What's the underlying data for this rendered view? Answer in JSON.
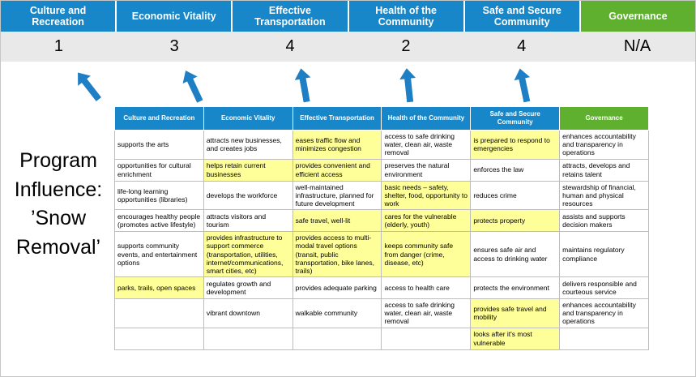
{
  "title": "Program Influence: ’Snow Removal’",
  "pillars": [
    {
      "name": "Culture and Recreation",
      "score": "1",
      "theme": "blue"
    },
    {
      "name": "Economic Vitality",
      "score": "3",
      "theme": "blue"
    },
    {
      "name": "Effective Transportation",
      "score": "4",
      "theme": "blue"
    },
    {
      "name": "Health of the Community",
      "score": "2",
      "theme": "blue"
    },
    {
      "name": "Safe and Secure Community",
      "score": "4",
      "theme": "blue"
    },
    {
      "name": "Governance",
      "score": "N/A",
      "theme": "green"
    }
  ],
  "table": {
    "headers": [
      {
        "label": "Culture and Recreation",
        "theme": "blue"
      },
      {
        "label": "Economic Vitality",
        "theme": "blue"
      },
      {
        "label": "Effective Transportation",
        "theme": "blue"
      },
      {
        "label": "Health of the Community",
        "theme": "blue"
      },
      {
        "label": "Safe and Secure Community",
        "theme": "blue"
      },
      {
        "label": "Governance",
        "theme": "green"
      }
    ],
    "rows": [
      [
        {
          "text": "supports the arts",
          "highlight": false
        },
        {
          "text": "attracts new businesses, and creates jobs",
          "highlight": false
        },
        {
          "text": "eases traffic flow and minimizes congestion",
          "highlight": true
        },
        {
          "text": "access to safe drinking water, clean air, waste removal",
          "highlight": false
        },
        {
          "text": "is prepared to respond to emergencies",
          "highlight": true
        },
        {
          "text": "enhances accountability and transparency in operations",
          "highlight": false
        }
      ],
      [
        {
          "text": "opportunities for cultural enrichment",
          "highlight": false
        },
        {
          "text": "helps retain current businesses",
          "highlight": true
        },
        {
          "text": "provides convenient and efficient access",
          "highlight": true
        },
        {
          "text": "preserves the natural environment",
          "highlight": false
        },
        {
          "text": "enforces the law",
          "highlight": false
        },
        {
          "text": "attracts, develops and retains talent",
          "highlight": false
        }
      ],
      [
        {
          "text": "life-long learning opportunities (libraries)",
          "highlight": false
        },
        {
          "text": "develops the workforce",
          "highlight": false
        },
        {
          "text": "well-maintained infrastructure, planned for future development",
          "highlight": false
        },
        {
          "text": "basic needs – safety, shelter, food, opportunity to work",
          "highlight": true
        },
        {
          "text": "reduces crime",
          "highlight": false
        },
        {
          "text": "stewardship of financial, human and physical resources",
          "highlight": false
        }
      ],
      [
        {
          "text": "encourages healthy people (promotes active lifestyle)",
          "highlight": false
        },
        {
          "text": "attracts visitors and tourism",
          "highlight": false
        },
        {
          "text": "safe travel, well-lit",
          "highlight": true
        },
        {
          "text": "cares for the vulnerable (elderly, youth)",
          "highlight": true
        },
        {
          "text": "protects property",
          "highlight": true
        },
        {
          "text": "assists and supports decision makers",
          "highlight": false
        }
      ],
      [
        {
          "text": "supports community events, and entertainment options",
          "highlight": false
        },
        {
          "text": "provides infrastructure to support commerce (transportation, utilities, internet/communications, smart cities, etc)",
          "highlight": true
        },
        {
          "text": "provides access to multi-modal travel options (transit, public transportation, bike lanes, trails)",
          "highlight": true
        },
        {
          "text": "keeps community safe from danger (crime, disease, etc)",
          "highlight": true
        },
        {
          "text": "ensures safe air and access to drinking water",
          "highlight": false
        },
        {
          "text": "maintains regulatory compliance",
          "highlight": false
        }
      ],
      [
        {
          "text": "parks, trails, open spaces",
          "highlight": true
        },
        {
          "text": "regulates growth and development",
          "highlight": false
        },
        {
          "text": "provides adequate parking",
          "highlight": false
        },
        {
          "text": "access to health care",
          "highlight": false
        },
        {
          "text": "protects the environment",
          "highlight": false
        },
        {
          "text": "delivers responsible and courteous service",
          "highlight": false
        }
      ],
      [
        {
          "text": "",
          "highlight": false
        },
        {
          "text": "vibrant downtown",
          "highlight": false
        },
        {
          "text": "walkable community",
          "highlight": false
        },
        {
          "text": "access to safe drinking water, clean air, waste removal",
          "highlight": false
        },
        {
          "text": "provides safe travel and mobility",
          "highlight": true
        },
        {
          "text": "enhances accountability and transparency in operations",
          "highlight": false
        }
      ],
      [
        {
          "text": "",
          "highlight": false
        },
        {
          "text": "",
          "highlight": false
        },
        {
          "text": "",
          "highlight": false
        },
        {
          "text": "",
          "highlight": false
        },
        {
          "text": "looks after it's most vulnerable",
          "highlight": true
        },
        {
          "text": "",
          "highlight": false
        }
      ]
    ]
  },
  "colors": {
    "pillar_blue": "#1787C9",
    "pillar_green": "#5FB02F",
    "highlight_yellow": "#FFFF99",
    "arrow_blue": "#1E7FC4",
    "score_band_gray": "#E9E9E9"
  }
}
